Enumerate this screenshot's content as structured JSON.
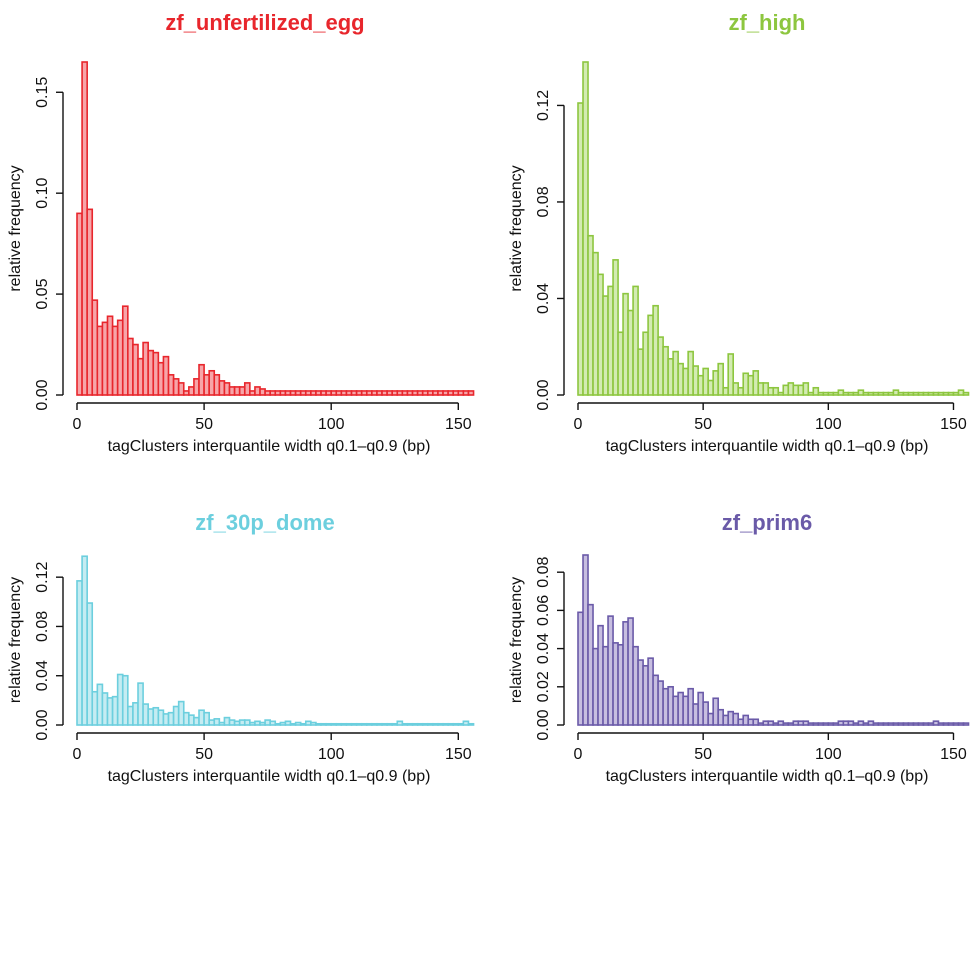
{
  "chart_data": [
    {
      "type": "bar",
      "title": "zf_unfertilized_egg",
      "color": "#E8262C",
      "fill": "#F7A5A9",
      "xlabel": "tagClusters interquantile width q0.1–q0.9 (bp)",
      "ylabel": "relative frequency",
      "xlim": [
        0,
        155
      ],
      "ylim": [
        0,
        0.165
      ],
      "xticks": [
        0,
        50,
        100,
        150
      ],
      "xtick_labels": [
        "0",
        "50",
        "100",
        "150"
      ],
      "yticks": [
        0,
        0.05,
        0.1,
        0.15
      ],
      "ytick_labels": [
        "0.00",
        "0.05",
        "0.10",
        "0.15"
      ],
      "bin_width": 2,
      "values": [
        0.09,
        0.165,
        0.092,
        0.047,
        0.034,
        0.036,
        0.039,
        0.034,
        0.037,
        0.044,
        0.028,
        0.025,
        0.018,
        0.026,
        0.022,
        0.021,
        0.016,
        0.019,
        0.01,
        0.008,
        0.006,
        0.002,
        0.004,
        0.008,
        0.015,
        0.01,
        0.012,
        0.01,
        0.007,
        0.006,
        0.004,
        0.004,
        0.004,
        0.006,
        0.002,
        0.004,
        0.003,
        0.002,
        0.002,
        0.002,
        0.002,
        0.002,
        0.002,
        0.002,
        0.002,
        0.002,
        0.002,
        0.002,
        0.002,
        0.002,
        0.002,
        0.002,
        0.002,
        0.002,
        0.002,
        0.002,
        0.002,
        0.002,
        0.002,
        0.002,
        0.002,
        0.002,
        0.002,
        0.002,
        0.002,
        0.002,
        0.002,
        0.002,
        0.002,
        0.002,
        0.002,
        0.002,
        0.002,
        0.002,
        0.002,
        0.002,
        0.002,
        0.002
      ]
    },
    {
      "type": "bar",
      "title": "zf_high",
      "color": "#8DC63F",
      "fill": "#D3EBB2",
      "xlabel": "tagClusters interquantile width q0.1–q0.9 (bp)",
      "ylabel": "relative frequency",
      "xlim": [
        0,
        155
      ],
      "ylim": [
        0,
        0.138
      ],
      "xticks": [
        0,
        50,
        100,
        150
      ],
      "xtick_labels": [
        "0",
        "50",
        "100",
        "150"
      ],
      "yticks": [
        0,
        0.04,
        0.08,
        0.12
      ],
      "ytick_labels": [
        "0.00",
        "0.04",
        "0.08",
        "0.12"
      ],
      "bin_width": 2,
      "values": [
        0.121,
        0.138,
        0.066,
        0.059,
        0.05,
        0.041,
        0.045,
        0.056,
        0.026,
        0.042,
        0.035,
        0.045,
        0.019,
        0.026,
        0.033,
        0.037,
        0.024,
        0.02,
        0.015,
        0.018,
        0.013,
        0.011,
        0.018,
        0.012,
        0.008,
        0.011,
        0.006,
        0.01,
        0.013,
        0.003,
        0.017,
        0.005,
        0.003,
        0.009,
        0.008,
        0.01,
        0.005,
        0.005,
        0.003,
        0.003,
        0.001,
        0.004,
        0.005,
        0.004,
        0.004,
        0.005,
        0.001,
        0.003,
        0.001,
        0.001,
        0.001,
        0.001,
        0.002,
        0.001,
        0.001,
        0.001,
        0.002,
        0.001,
        0.001,
        0.001,
        0.001,
        0.001,
        0.001,
        0.002,
        0.001,
        0.001,
        0.001,
        0.001,
        0.001,
        0.001,
        0.001,
        0.001,
        0.001,
        0.001,
        0.001,
        0.001,
        0.002,
        0.001
      ]
    },
    {
      "type": "bar",
      "title": "zf_30p_dome",
      "color": "#6CCFDE",
      "fill": "#C5ECF2",
      "xlabel": "tagClusters interquantile width q0.1–q0.9 (bp)",
      "ylabel": "relative frequency",
      "xlim": [
        0,
        155
      ],
      "ylim": [
        0,
        0.138
      ],
      "xticks": [
        0,
        50,
        100,
        150
      ],
      "xtick_labels": [
        "0",
        "50",
        "100",
        "150"
      ],
      "yticks": [
        0,
        0.04,
        0.08,
        0.12
      ],
      "ytick_labels": [
        "0.00",
        "0.04",
        "0.08",
        "0.12"
      ],
      "bin_width": 2,
      "values": [
        0.117,
        0.137,
        0.099,
        0.027,
        0.033,
        0.026,
        0.022,
        0.023,
        0.041,
        0.04,
        0.015,
        0.018,
        0.034,
        0.017,
        0.013,
        0.014,
        0.012,
        0.009,
        0.01,
        0.015,
        0.019,
        0.01,
        0.008,
        0.006,
        0.012,
        0.01,
        0.004,
        0.005,
        0.002,
        0.006,
        0.004,
        0.003,
        0.004,
        0.004,
        0.002,
        0.003,
        0.002,
        0.004,
        0.003,
        0.001,
        0.002,
        0.003,
        0.001,
        0.002,
        0.001,
        0.003,
        0.002,
        0.001,
        0.001,
        0.001,
        0.001,
        0.001,
        0.001,
        0.001,
        0.001,
        0.001,
        0.001,
        0.001,
        0.001,
        0.001,
        0.001,
        0.001,
        0.001,
        0.003,
        0.001,
        0.001,
        0.001,
        0.001,
        0.001,
        0.001,
        0.001,
        0.001,
        0.001,
        0.001,
        0.001,
        0.001,
        0.003,
        0.001
      ]
    },
    {
      "type": "bar",
      "title": "zf_prim6",
      "color": "#6A5AA8",
      "fill": "#C7BEE0",
      "xlabel": "tagClusters interquantile width q0.1–q0.9 (bp)",
      "ylabel": "relative frequency",
      "xlim": [
        0,
        155
      ],
      "ylim": [
        0,
        0.089
      ],
      "xticks": [
        0,
        50,
        100,
        150
      ],
      "xtick_labels": [
        "0",
        "50",
        "100",
        "150"
      ],
      "yticks": [
        0,
        0.02,
        0.04,
        0.06,
        0.08
      ],
      "ytick_labels": [
        "0.00",
        "0.02",
        "0.04",
        "0.06",
        "0.08"
      ],
      "bin_width": 2,
      "values": [
        0.059,
        0.089,
        0.063,
        0.04,
        0.052,
        0.041,
        0.057,
        0.043,
        0.042,
        0.054,
        0.056,
        0.041,
        0.034,
        0.031,
        0.035,
        0.026,
        0.023,
        0.019,
        0.02,
        0.015,
        0.017,
        0.015,
        0.019,
        0.011,
        0.017,
        0.012,
        0.006,
        0.014,
        0.008,
        0.005,
        0.007,
        0.006,
        0.003,
        0.005,
        0.003,
        0.003,
        0.001,
        0.002,
        0.002,
        0.001,
        0.002,
        0.001,
        0.001,
        0.002,
        0.002,
        0.002,
        0.001,
        0.001,
        0.001,
        0.001,
        0.001,
        0.001,
        0.002,
        0.002,
        0.002,
        0.001,
        0.002,
        0.001,
        0.002,
        0.001,
        0.001,
        0.001,
        0.001,
        0.001,
        0.001,
        0.001,
        0.001,
        0.001,
        0.001,
        0.001,
        0.001,
        0.002,
        0.001,
        0.001,
        0.001,
        0.001,
        0.001,
        0.001
      ]
    }
  ]
}
